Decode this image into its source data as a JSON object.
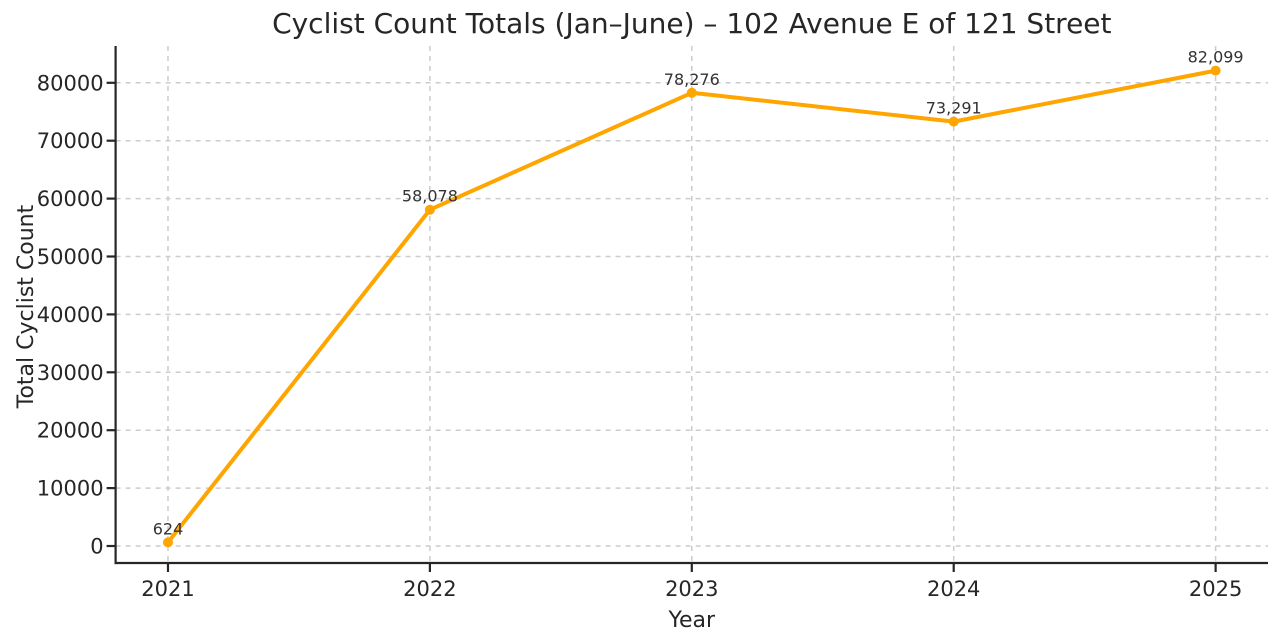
{
  "chart_data": {
    "type": "line",
    "title": "Cyclist Count Totals (Jan–June) – 102 Avenue E of 121 Street",
    "xlabel": "Year",
    "ylabel": "Total Cyclist Count",
    "x": [
      2021,
      2022,
      2023,
      2024,
      2025
    ],
    "series": [
      {
        "name": "Total Cyclist Count",
        "values": [
          624,
          58078,
          78276,
          73291,
          82099
        ]
      }
    ],
    "point_labels": [
      "624",
      "58,078",
      "78,276",
      "73,291",
      "82,099"
    ],
    "xticks": [
      2021,
      2022,
      2023,
      2024,
      2025
    ],
    "yticks": [
      0,
      10000,
      20000,
      30000,
      40000,
      50000,
      60000,
      70000,
      80000
    ],
    "xlim": [
      2020.8,
      2025.2
    ],
    "ylim": [
      -2936,
      86356
    ],
    "grid": true,
    "legend": "none",
    "line_color": "#FFA500",
    "marker_color": "#FFA500",
    "grid_color": "#CCCCCC",
    "spine_color": "#262626",
    "text_color": "#262626",
    "background": "#FFFFFF"
  }
}
